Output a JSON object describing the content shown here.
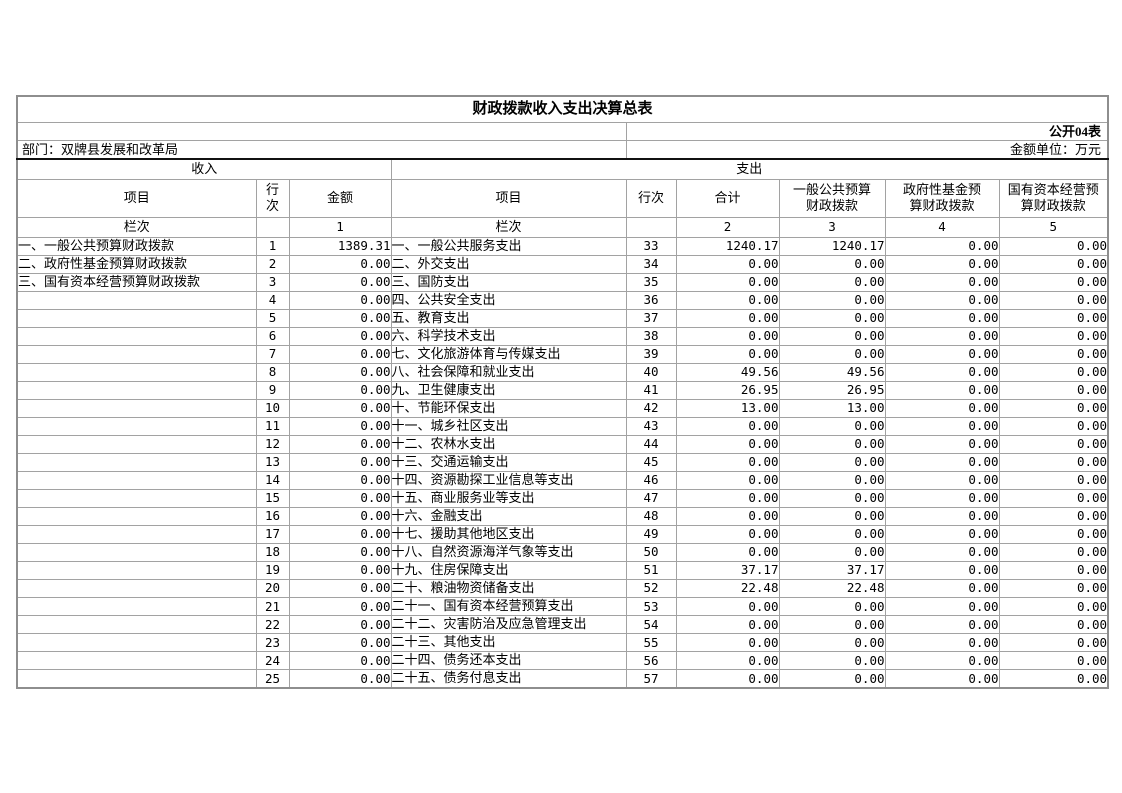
{
  "title": "财政拨款收入支出决算总表",
  "meta": {
    "table_code": "公开04表",
    "department": "部门：双牌县发展和改革局",
    "unit": "金额单位：万元"
  },
  "income": {
    "section_label": "收入",
    "headers": {
      "item": "项目",
      "row_no": "行\n次",
      "amount": "金额"
    },
    "column_row_label": "栏次",
    "column_nos": [
      "1"
    ],
    "rows": [
      {
        "item": "一、一般公共预算财政拨款",
        "row_no": "1",
        "amount": "1389.31"
      },
      {
        "item": "二、政府性基金预算财政拨款",
        "row_no": "2",
        "amount": "0.00"
      },
      {
        "item": "三、国有资本经营预算财政拨款",
        "row_no": "3",
        "amount": "0.00"
      },
      {
        "item": "",
        "row_no": "4",
        "amount": "0.00"
      },
      {
        "item": "",
        "row_no": "5",
        "amount": "0.00"
      },
      {
        "item": "",
        "row_no": "6",
        "amount": "0.00"
      },
      {
        "item": "",
        "row_no": "7",
        "amount": "0.00"
      },
      {
        "item": "",
        "row_no": "8",
        "amount": "0.00"
      },
      {
        "item": "",
        "row_no": "9",
        "amount": "0.00"
      },
      {
        "item": "",
        "row_no": "10",
        "amount": "0.00"
      },
      {
        "item": "",
        "row_no": "11",
        "amount": "0.00"
      },
      {
        "item": "",
        "row_no": "12",
        "amount": "0.00"
      },
      {
        "item": "",
        "row_no": "13",
        "amount": "0.00"
      },
      {
        "item": "",
        "row_no": "14",
        "amount": "0.00"
      },
      {
        "item": "",
        "row_no": "15",
        "amount": "0.00"
      },
      {
        "item": "",
        "row_no": "16",
        "amount": "0.00"
      },
      {
        "item": "",
        "row_no": "17",
        "amount": "0.00"
      },
      {
        "item": "",
        "row_no": "18",
        "amount": "0.00"
      },
      {
        "item": "",
        "row_no": "19",
        "amount": "0.00"
      },
      {
        "item": "",
        "row_no": "20",
        "amount": "0.00"
      },
      {
        "item": "",
        "row_no": "21",
        "amount": "0.00"
      },
      {
        "item": "",
        "row_no": "22",
        "amount": "0.00"
      },
      {
        "item": "",
        "row_no": "23",
        "amount": "0.00"
      },
      {
        "item": "",
        "row_no": "24",
        "amount": "0.00"
      },
      {
        "item": "",
        "row_no": "25",
        "amount": "0.00"
      }
    ]
  },
  "expenditure": {
    "section_label": "支出",
    "headers": {
      "item": "项目",
      "row_no": "行次",
      "total": "合计",
      "general": "一般公共预算\n财政拨款",
      "gov_fund": "政府性基金预\n算财政拨款",
      "state_capital": "国有资本经营预\n算财政拨款"
    },
    "column_row_label": "栏次",
    "column_nos": [
      "2",
      "3",
      "4",
      "5"
    ],
    "rows": [
      {
        "item": "一、一般公共服务支出",
        "row_no": "33",
        "total": "1240.17",
        "general": "1240.17",
        "gov_fund": "0.00",
        "state_capital": "0.00"
      },
      {
        "item": "二、外交支出",
        "row_no": "34",
        "total": "0.00",
        "general": "0.00",
        "gov_fund": "0.00",
        "state_capital": "0.00"
      },
      {
        "item": "三、国防支出",
        "row_no": "35",
        "total": "0.00",
        "general": "0.00",
        "gov_fund": "0.00",
        "state_capital": "0.00"
      },
      {
        "item": "四、公共安全支出",
        "row_no": "36",
        "total": "0.00",
        "general": "0.00",
        "gov_fund": "0.00",
        "state_capital": "0.00"
      },
      {
        "item": "五、教育支出",
        "row_no": "37",
        "total": "0.00",
        "general": "0.00",
        "gov_fund": "0.00",
        "state_capital": "0.00"
      },
      {
        "item": "六、科学技术支出",
        "row_no": "38",
        "total": "0.00",
        "general": "0.00",
        "gov_fund": "0.00",
        "state_capital": "0.00"
      },
      {
        "item": "七、文化旅游体育与传媒支出",
        "row_no": "39",
        "total": "0.00",
        "general": "0.00",
        "gov_fund": "0.00",
        "state_capital": "0.00"
      },
      {
        "item": "八、社会保障和就业支出",
        "row_no": "40",
        "total": "49.56",
        "general": "49.56",
        "gov_fund": "0.00",
        "state_capital": "0.00"
      },
      {
        "item": "九、卫生健康支出",
        "row_no": "41",
        "total": "26.95",
        "general": "26.95",
        "gov_fund": "0.00",
        "state_capital": "0.00"
      },
      {
        "item": "十、节能环保支出",
        "row_no": "42",
        "total": "13.00",
        "general": "13.00",
        "gov_fund": "0.00",
        "state_capital": "0.00"
      },
      {
        "item": "十一、城乡社区支出",
        "row_no": "43",
        "total": "0.00",
        "general": "0.00",
        "gov_fund": "0.00",
        "state_capital": "0.00"
      },
      {
        "item": "十二、农林水支出",
        "row_no": "44",
        "total": "0.00",
        "general": "0.00",
        "gov_fund": "0.00",
        "state_capital": "0.00"
      },
      {
        "item": "十三、交通运输支出",
        "row_no": "45",
        "total": "0.00",
        "general": "0.00",
        "gov_fund": "0.00",
        "state_capital": "0.00"
      },
      {
        "item": "十四、资源勘探工业信息等支出",
        "row_no": "46",
        "total": "0.00",
        "general": "0.00",
        "gov_fund": "0.00",
        "state_capital": "0.00"
      },
      {
        "item": "十五、商业服务业等支出",
        "row_no": "47",
        "total": "0.00",
        "general": "0.00",
        "gov_fund": "0.00",
        "state_capital": "0.00"
      },
      {
        "item": "十六、金融支出",
        "row_no": "48",
        "total": "0.00",
        "general": "0.00",
        "gov_fund": "0.00",
        "state_capital": "0.00"
      },
      {
        "item": "十七、援助其他地区支出",
        "row_no": "49",
        "total": "0.00",
        "general": "0.00",
        "gov_fund": "0.00",
        "state_capital": "0.00"
      },
      {
        "item": "十八、自然资源海洋气象等支出",
        "row_no": "50",
        "total": "0.00",
        "general": "0.00",
        "gov_fund": "0.00",
        "state_capital": "0.00"
      },
      {
        "item": "十九、住房保障支出",
        "row_no": "51",
        "total": "37.17",
        "general": "37.17",
        "gov_fund": "0.00",
        "state_capital": "0.00"
      },
      {
        "item": "二十、粮油物资储备支出",
        "row_no": "52",
        "total": "22.48",
        "general": "22.48",
        "gov_fund": "0.00",
        "state_capital": "0.00"
      },
      {
        "item": "二十一、国有资本经营预算支出",
        "row_no": "53",
        "total": "0.00",
        "general": "0.00",
        "gov_fund": "0.00",
        "state_capital": "0.00"
      },
      {
        "item": "二十二、灾害防治及应急管理支出",
        "row_no": "54",
        "total": "0.00",
        "general": "0.00",
        "gov_fund": "0.00",
        "state_capital": "0.00"
      },
      {
        "item": "二十三、其他支出",
        "row_no": "55",
        "total": "0.00",
        "general": "0.00",
        "gov_fund": "0.00",
        "state_capital": "0.00"
      },
      {
        "item": "二十四、债务还本支出",
        "row_no": "56",
        "total": "0.00",
        "general": "0.00",
        "gov_fund": "0.00",
        "state_capital": "0.00"
      },
      {
        "item": "二十五、债务付息支出",
        "row_no": "57",
        "total": "0.00",
        "general": "0.00",
        "gov_fund": "0.00",
        "state_capital": "0.00"
      }
    ]
  }
}
